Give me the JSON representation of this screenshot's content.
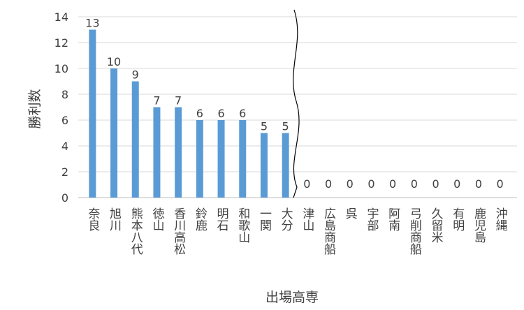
{
  "chart_data": {
    "type": "bar",
    "xlabel": "出場高専",
    "ylabel": "勝利数",
    "ylim": [
      0,
      14
    ],
    "yticks": [
      0,
      2,
      4,
      6,
      8,
      10,
      12,
      14
    ],
    "grid": true,
    "legend": "none",
    "axis_break": "between 大分 and 津山",
    "categories": [
      "奈良",
      "旭川",
      "熊本八代",
      "徳山",
      "香川高松",
      "鈴鹿",
      "明石",
      "和歌山",
      "一関",
      "大分",
      "津山",
      "広島商船",
      "呉",
      "宇部",
      "阿南",
      "弓削商船",
      "久留米",
      "有明",
      "鹿児島",
      "沖縄"
    ],
    "values": [
      13,
      10,
      9,
      7,
      7,
      6,
      6,
      6,
      5,
      5,
      0,
      0,
      0,
      0,
      0,
      0,
      0,
      0,
      0,
      0
    ],
    "data_labels": [
      "13",
      "10",
      "9",
      "7",
      "7",
      "6",
      "6",
      "6",
      "5",
      "5",
      "0",
      "0",
      "0",
      "0",
      "0",
      "0",
      "0",
      "0",
      "0",
      "0"
    ],
    "colors": {
      "bar": "#5B9BD5",
      "grid": "#D9D9D9",
      "axis": "#BFBFBF",
      "text": "#404040",
      "break_line": "#000000"
    }
  }
}
